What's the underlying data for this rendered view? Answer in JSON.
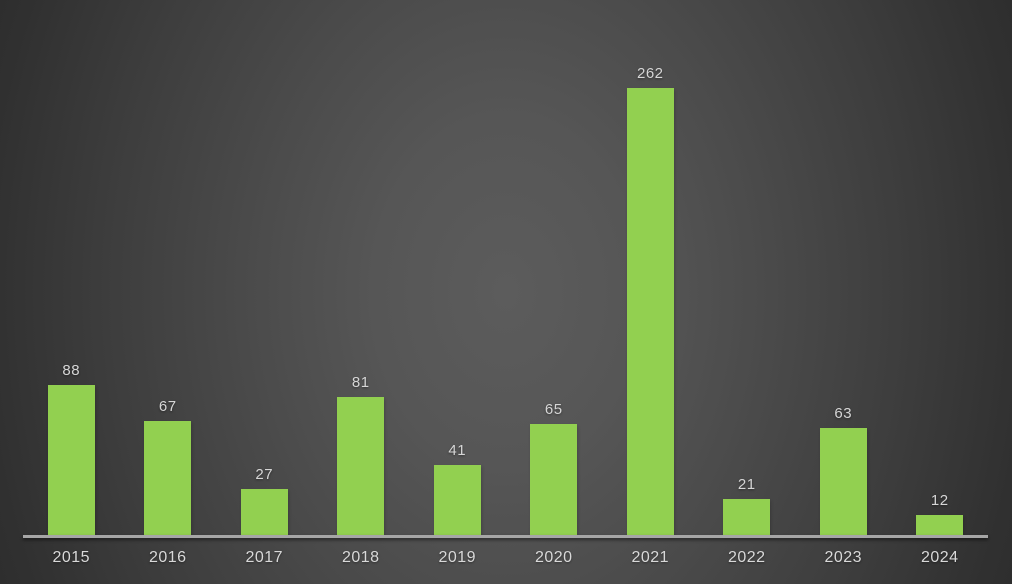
{
  "chart_data": {
    "type": "bar",
    "title": "",
    "xlabel": "",
    "ylabel": "",
    "categories": [
      "2015",
      "2016",
      "2017",
      "2018",
      "2019",
      "2020",
      "2021",
      "2022",
      "2023",
      "2024"
    ],
    "values": [
      88,
      67,
      27,
      81,
      41,
      65,
      262,
      21,
      63,
      12
    ],
    "ylim": [
      0,
      262
    ],
    "gridlines": false,
    "legend": "none",
    "data_labels_visible": true,
    "colors": {
      "bar": "#92d050",
      "data_label": "#d6d6d6",
      "category_label": "#d9d9d9",
      "axis_line": "#a6a6a6",
      "background_center": "#5c5c5c",
      "background_edge": "#242424"
    }
  }
}
